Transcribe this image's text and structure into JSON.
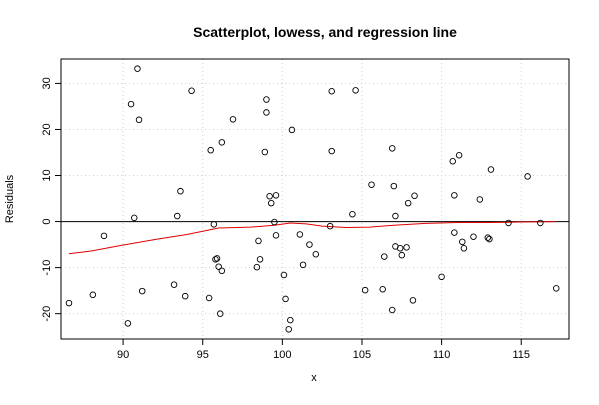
{
  "chart_data": {
    "type": "scatter",
    "title": "Scatterplot, lowess, and regression line",
    "xlabel": "x",
    "ylabel": "Residuals",
    "xlim": [
      86.1,
      118.0
    ],
    "ylim": [
      -25.5,
      35.3
    ],
    "x_ticks": [
      90,
      95,
      100,
      105,
      110,
      115
    ],
    "y_ticks": [
      -20,
      -10,
      0,
      10,
      20,
      30
    ],
    "grid": true,
    "colors": {
      "points": "#000000",
      "lowess": "#e00000",
      "regression": "#000000",
      "grid": "#d0d0d0"
    },
    "points": [
      [
        86.6,
        -17.7
      ],
      [
        88.1,
        -15.9
      ],
      [
        88.8,
        -3.1
      ],
      [
        90.3,
        -22.1
      ],
      [
        90.5,
        25.5
      ],
      [
        90.7,
        0.8
      ],
      [
        90.9,
        33.2
      ],
      [
        91.0,
        22.1
      ],
      [
        91.2,
        -15.1
      ],
      [
        93.2,
        -13.7
      ],
      [
        93.4,
        1.2
      ],
      [
        93.6,
        6.6
      ],
      [
        93.9,
        -16.2
      ],
      [
        94.3,
        28.4
      ],
      [
        95.4,
        -16.6
      ],
      [
        95.5,
        15.5
      ],
      [
        95.7,
        -0.6
      ],
      [
        95.8,
        -8.2
      ],
      [
        95.9,
        -8.0
      ],
      [
        96.0,
        -9.8
      ],
      [
        96.1,
        -20.0
      ],
      [
        96.2,
        17.2
      ],
      [
        96.2,
        -10.7
      ],
      [
        96.9,
        22.2
      ],
      [
        98.4,
        -9.9
      ],
      [
        98.5,
        -4.2
      ],
      [
        98.6,
        -8.2
      ],
      [
        98.9,
        15.1
      ],
      [
        99.0,
        23.7
      ],
      [
        99.0,
        26.5
      ],
      [
        99.2,
        5.5
      ],
      [
        99.3,
        4.0
      ],
      [
        99.5,
        -0.1
      ],
      [
        99.6,
        5.7
      ],
      [
        99.6,
        -3.0
      ],
      [
        100.1,
        -11.6
      ],
      [
        100.2,
        -16.8
      ],
      [
        100.4,
        -23.4
      ],
      [
        100.5,
        -21.4
      ],
      [
        100.6,
        19.9
      ],
      [
        101.1,
        -2.8
      ],
      [
        101.3,
        -9.4
      ],
      [
        101.7,
        -5.0
      ],
      [
        102.1,
        -7.1
      ],
      [
        103.0,
        -1.0
      ],
      [
        103.1,
        15.3
      ],
      [
        103.1,
        28.3
      ],
      [
        104.4,
        1.6
      ],
      [
        104.6,
        28.5
      ],
      [
        105.2,
        -14.9
      ],
      [
        105.6,
        8.0
      ],
      [
        106.3,
        -14.7
      ],
      [
        106.4,
        -7.6
      ],
      [
        106.9,
        -19.2
      ],
      [
        106.9,
        15.9
      ],
      [
        107.0,
        7.7
      ],
      [
        107.1,
        1.2
      ],
      [
        107.1,
        -5.4
      ],
      [
        107.4,
        -5.8
      ],
      [
        107.5,
        -7.3
      ],
      [
        107.8,
        -5.6
      ],
      [
        107.9,
        4.0
      ],
      [
        108.2,
        -17.1
      ],
      [
        108.3,
        5.6
      ],
      [
        110.0,
        -12.0
      ],
      [
        110.7,
        13.1
      ],
      [
        110.8,
        5.7
      ],
      [
        110.8,
        -2.4
      ],
      [
        111.1,
        14.4
      ],
      [
        111.3,
        -4.4
      ],
      [
        111.4,
        -5.8
      ],
      [
        112.0,
        -3.3
      ],
      [
        112.4,
        4.8
      ],
      [
        112.9,
        -3.5
      ],
      [
        113.0,
        -3.8
      ],
      [
        113.1,
        11.3
      ],
      [
        114.2,
        -0.3
      ],
      [
        115.4,
        9.8
      ],
      [
        116.2,
        -0.3
      ],
      [
        117.2,
        -14.5
      ]
    ],
    "lowess": [
      [
        86.6,
        -7.0
      ],
      [
        88.0,
        -6.4
      ],
      [
        90.0,
        -5.1
      ],
      [
        92.0,
        -3.9
      ],
      [
        94.0,
        -2.8
      ],
      [
        96.0,
        -1.4
      ],
      [
        98.0,
        -1.2
      ],
      [
        99.5,
        -0.8
      ],
      [
        100.5,
        -0.3
      ],
      [
        101.5,
        -0.5
      ],
      [
        102.5,
        -1.0
      ],
      [
        104.0,
        -1.3
      ],
      [
        105.5,
        -1.2
      ],
      [
        107.0,
        -0.8
      ],
      [
        109.0,
        -0.4
      ],
      [
        111.0,
        -0.2
      ],
      [
        113.0,
        -0.2
      ],
      [
        115.0,
        -0.1
      ],
      [
        117.2,
        0.0
      ]
    ],
    "regression": [
      [
        86.1,
        0.0
      ],
      [
        118.0,
        0.0
      ]
    ]
  }
}
